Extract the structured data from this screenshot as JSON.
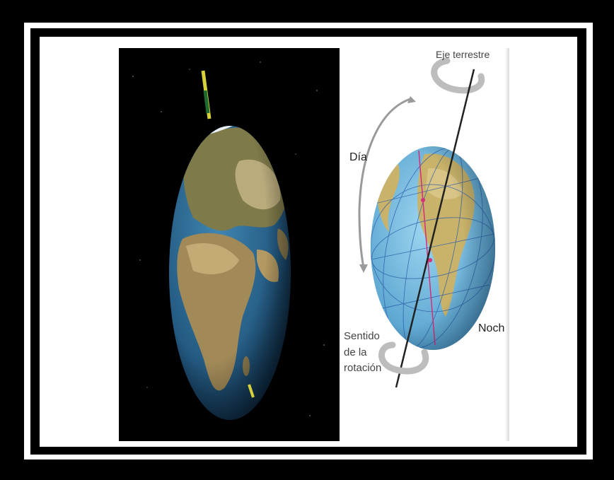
{
  "diagram": {
    "labels": {
      "axis": "Eje terrestre",
      "day": "Día",
      "night": "Noche",
      "rotation_line1": "Sentido",
      "rotation_line2": "de la",
      "rotation_line3": "rotación"
    },
    "colors": {
      "space": "#000000",
      "ocean": "#2d6f9a",
      "land": "#8c7a4e",
      "axis_stick": "#d8d23a",
      "globe_sea": "#7fc2e4",
      "globe_land": "#c9b36a",
      "grid_line": "#2a5aa8",
      "highlight": "#d0307a"
    }
  }
}
